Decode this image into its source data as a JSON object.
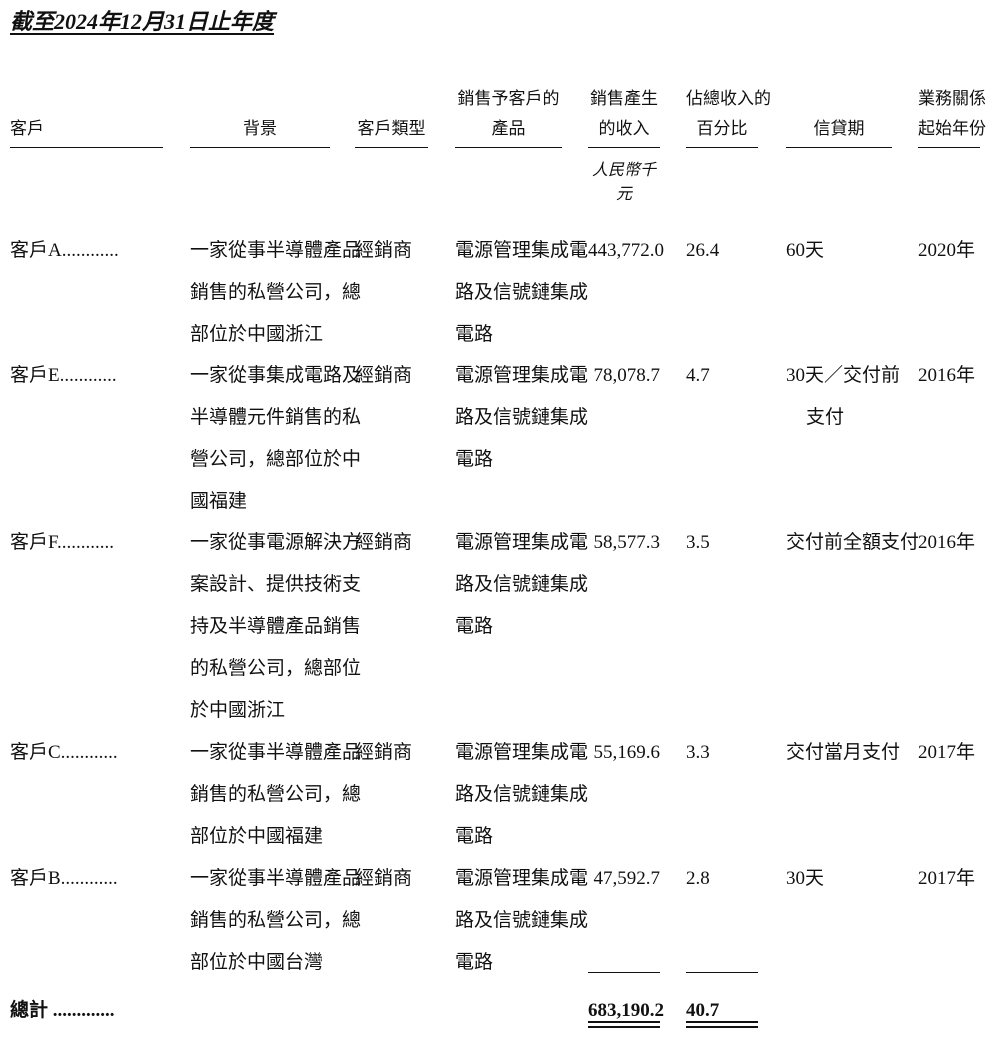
{
  "title": "截至2024年12月31日止年度",
  "headers": {
    "customer": [
      "",
      "客戶"
    ],
    "background": [
      "",
      "背景"
    ],
    "type": [
      "",
      "客戶類型"
    ],
    "product": [
      "銷售予客戶的",
      "產品"
    ],
    "revenue": [
      "銷售產生",
      "的收入"
    ],
    "percent": [
      "佔總收入的",
      "百分比"
    ],
    "credit": [
      "",
      "信貸期"
    ],
    "year": [
      "業務關係",
      "起始年份"
    ]
  },
  "unit": "人民幣千元",
  "rows": [
    {
      "name": "客戶A............",
      "background": [
        "一家從事半導體產品",
        "銷售的私營公司，總",
        "部位於中國浙江"
      ],
      "type": "經銷商",
      "product": [
        "電源管理集成電",
        "路及信號鏈集成",
        "電路"
      ],
      "revenue": "443,772.0",
      "percent": "26.4",
      "credit": [
        "60天"
      ],
      "year": "2020年"
    },
    {
      "name": "客戶E............",
      "background": [
        "一家從事集成電路及",
        "半導體元件銷售的私",
        "營公司，總部位於中",
        "國福建"
      ],
      "type": "經銷商",
      "product": [
        "電源管理集成電",
        "路及信號鏈集成",
        "電路"
      ],
      "revenue": "78,078.7",
      "percent": "4.7",
      "credit": [
        "30天／交付前",
        "支付"
      ],
      "year": "2016年"
    },
    {
      "name": "客戶F............",
      "background": [
        "一家從事電源解決方",
        "案設計、提供技術支",
        "持及半導體產品銷售",
        "的私營公司，總部位",
        "於中國浙江"
      ],
      "type": "經銷商",
      "product": [
        "電源管理集成電",
        "路及信號鏈集成",
        "電路"
      ],
      "revenue": "58,577.3",
      "percent": "3.5",
      "credit": [
        "交付前全額支付"
      ],
      "year": "2016年"
    },
    {
      "name": "客戶C............",
      "background": [
        "一家從事半導體產品",
        "銷售的私營公司，總",
        "部位於中國福建"
      ],
      "type": "經銷商",
      "product": [
        "電源管理集成電",
        "路及信號鏈集成",
        "電路"
      ],
      "revenue": "55,169.6",
      "percent": "3.3",
      "credit": [
        "交付當月支付"
      ],
      "year": "2017年"
    },
    {
      "name": "客戶B............",
      "background": [
        "一家從事半導體產品",
        "銷售的私營公司，總",
        "部位於中國台灣"
      ],
      "type": "經銷商",
      "product": [
        "電源管理集成電",
        "路及信號鏈集成",
        "電路"
      ],
      "revenue": "47,592.7",
      "percent": "2.8",
      "credit": [
        "30天"
      ],
      "year": "2017年"
    }
  ],
  "total": {
    "label": "總計 .............",
    "revenue": "683,190.2",
    "percent": "40.7"
  }
}
